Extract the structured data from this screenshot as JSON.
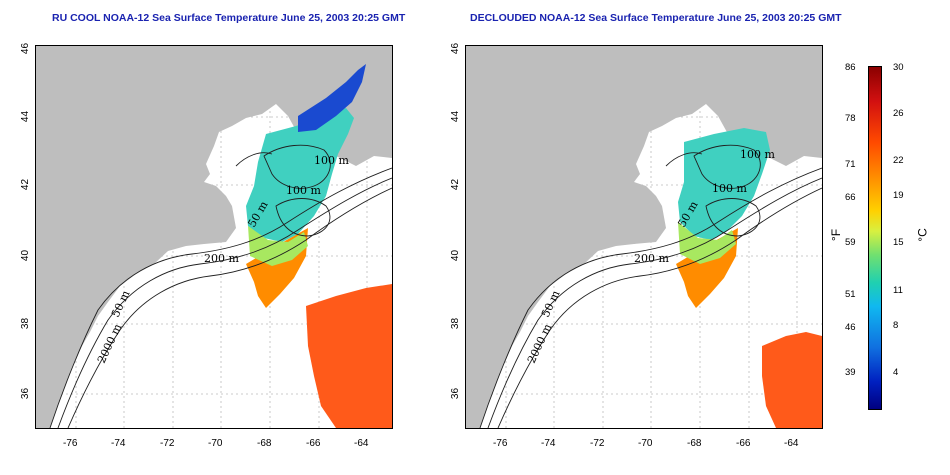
{
  "panels": [
    {
      "title": "RU COOL NOAA-12 Sea Surface Temperature June 25, 2003 20:25 GMT",
      "labels": [
        "100 m",
        "100 m",
        "50 m",
        "200 m",
        "50 m",
        "2000 m"
      ]
    },
    {
      "title": "DECLOUDED NOAA-12 Sea Surface Temperature June 25, 2003 20:25 GMT",
      "labels": [
        "100 m",
        "100 m",
        "50 m",
        "200 m",
        "50 m",
        "2000 m"
      ]
    }
  ],
  "axes": {
    "x_ticks": [
      "-76",
      "-74",
      "-72",
      "-70",
      "-68",
      "-66",
      "-64"
    ],
    "y_ticks": [
      "46",
      "44",
      "42",
      "40",
      "38",
      "36"
    ]
  },
  "colorbar": {
    "fahrenheit_ticks": [
      "86",
      "78",
      "71",
      "66",
      "59",
      "51",
      "46",
      "39"
    ],
    "celsius_ticks": [
      "30",
      "26",
      "22",
      "19",
      "15",
      "11",
      "8",
      "4"
    ],
    "fahrenheit_label": "°F",
    "celsius_label": "°C",
    "colors": [
      "#8b0000",
      "#d21010",
      "#ff4a00",
      "#ff8c00",
      "#ffd000",
      "#70e070",
      "#10b8f0",
      "#1070e0",
      "#0020c0",
      "#000080"
    ]
  },
  "colors": {
    "land": "#bebebe",
    "water": "#ffffff",
    "title": "#1a23b0",
    "grid": "#bbbbbb"
  }
}
